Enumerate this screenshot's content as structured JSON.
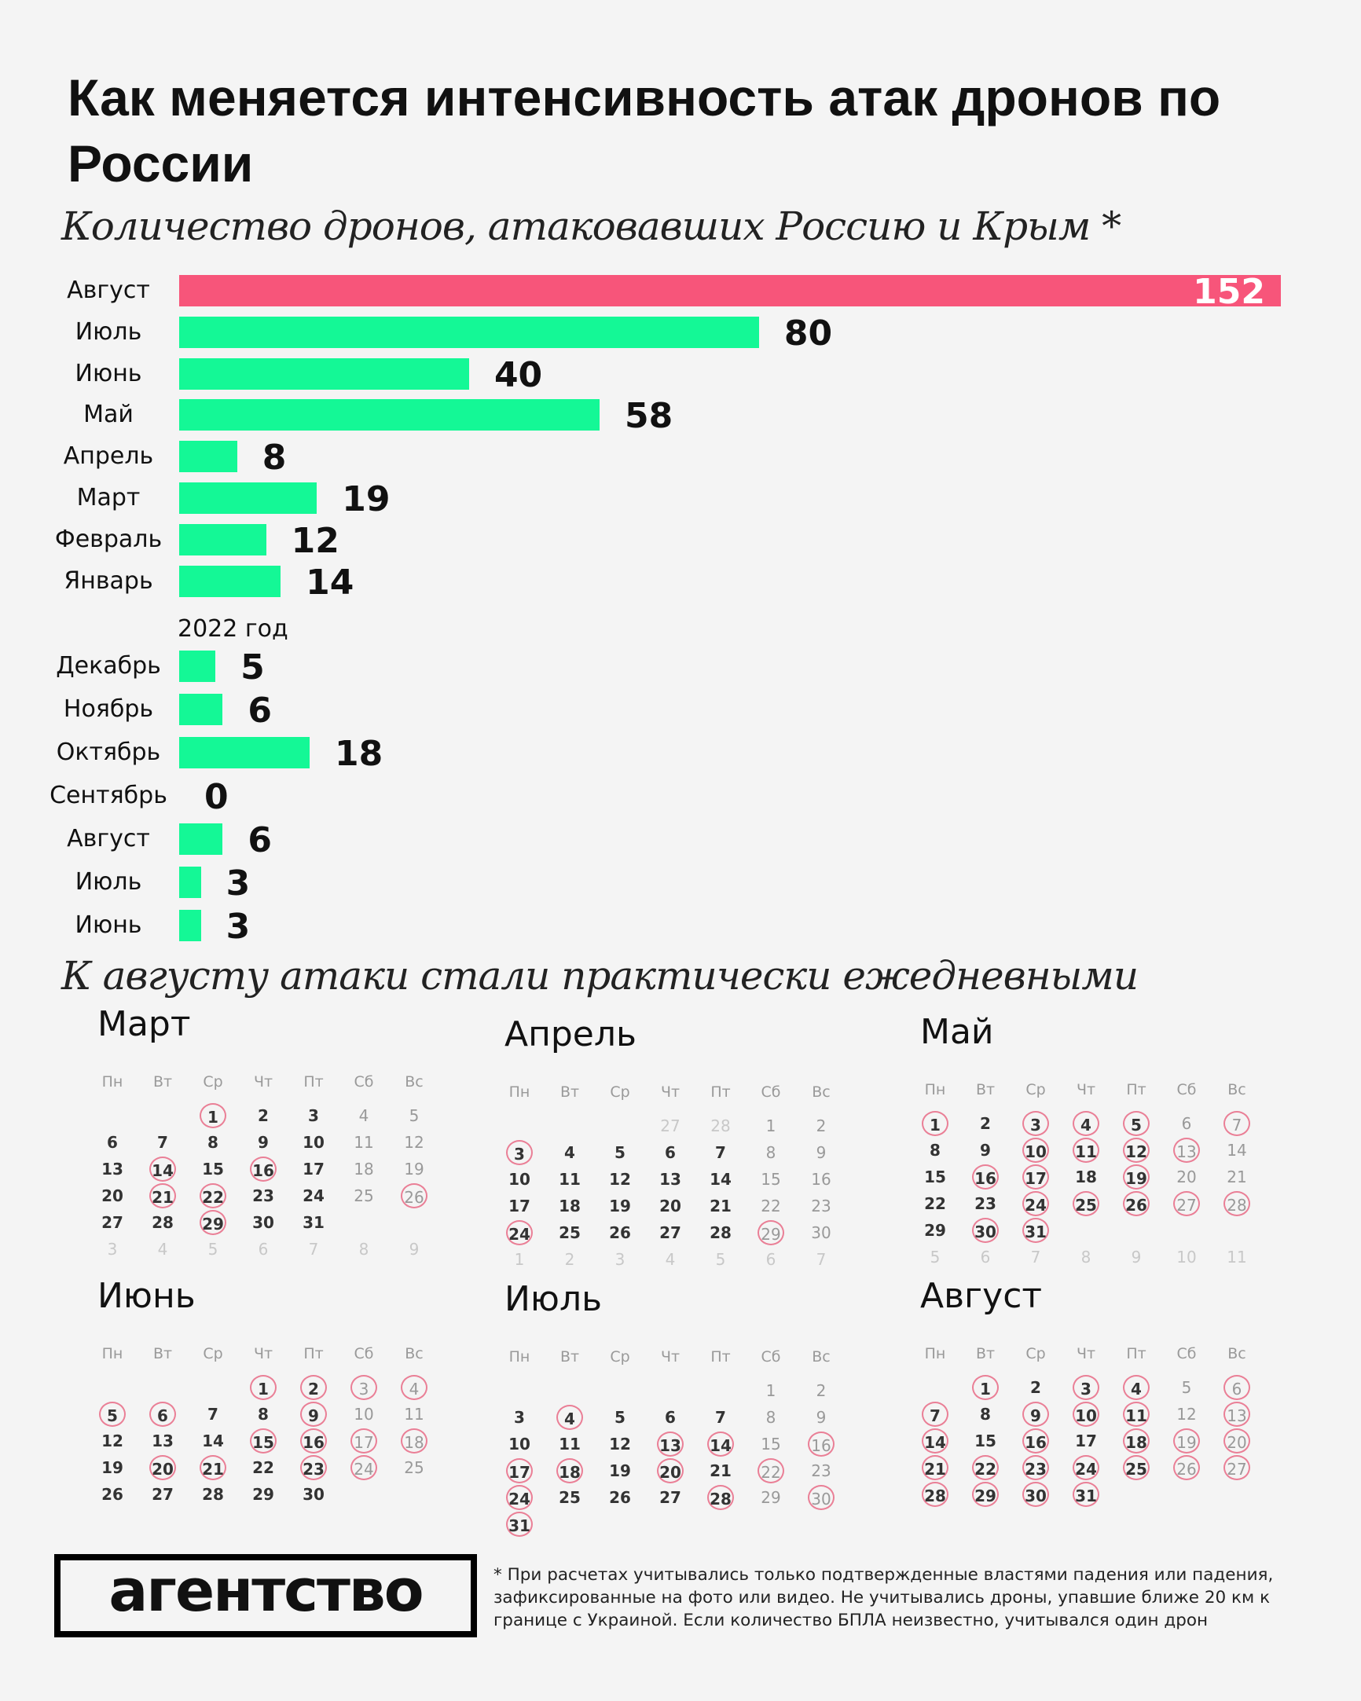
{
  "title": "Как меняется интенсивность атак дронов по России",
  "subtitle": "Количество дронов, атаковавших Россию и Крым *",
  "colors": {
    "highlight": "#f7557a",
    "bar": "#14f896",
    "circle": "#ea7f96",
    "background": "#f4f4f4"
  },
  "chart_data": {
    "type": "bar",
    "orientation": "horizontal",
    "title": "Количество дронов, атаковавших Россию и Крым *",
    "groups": [
      {
        "label": "",
        "categories": [
          "Август",
          "Июль",
          "Июнь",
          "Май",
          "Апрель",
          "Март",
          "Февраль",
          "Январь"
        ],
        "values": [
          152,
          80,
          40,
          58,
          8,
          19,
          12,
          14
        ]
      },
      {
        "label": "2022 год",
        "categories": [
          "Декабрь",
          "Ноябрь",
          "Октябрь",
          "Сентябрь",
          "Август",
          "Июль",
          "Июнь"
        ],
        "values": [
          5,
          6,
          18,
          0,
          6,
          3,
          3
        ]
      }
    ],
    "highlighted": "Август",
    "xlim": [
      0,
      152
    ]
  },
  "calendar_section": {
    "subtitle": "К августу атаки стали практически ежедневными",
    "weekdays": [
      "Пн",
      "Вт",
      "Ср",
      "Чт",
      "Пт",
      "Сб",
      "Вс"
    ],
    "months": [
      {
        "name": "Март",
        "start_weekday": 2,
        "days": 31,
        "leading": [],
        "trailing": [
          3,
          4,
          5,
          6,
          7,
          8,
          9
        ],
        "attack_days": [
          1,
          14,
          16,
          21,
          22,
          26,
          29
        ]
      },
      {
        "name": "Апрель",
        "start_weekday": 5,
        "days": 30,
        "leading": [
          27,
          28
        ],
        "trailing": [
          1,
          2,
          3,
          4,
          5,
          6,
          7
        ],
        "attack_days": [
          3,
          24,
          29
        ]
      },
      {
        "name": "Май",
        "start_weekday": 0,
        "days": 31,
        "leading": [],
        "trailing": [
          5,
          6,
          7,
          8,
          9,
          10,
          11
        ],
        "attack_days": [
          1,
          3,
          4,
          5,
          7,
          10,
          11,
          12,
          13,
          16,
          17,
          19,
          24,
          25,
          26,
          27,
          28,
          30,
          31
        ]
      },
      {
        "name": "Июнь",
        "start_weekday": 3,
        "days": 30,
        "leading": [],
        "trailing": [],
        "attack_days": [
          1,
          2,
          3,
          4,
          5,
          6,
          9,
          15,
          16,
          17,
          18,
          20,
          21,
          23,
          24
        ]
      },
      {
        "name": "Июль",
        "start_weekday": 5,
        "days": 31,
        "leading": [],
        "trailing": [],
        "attack_days": [
          4,
          13,
          14,
          16,
          17,
          18,
          20,
          22,
          24,
          28,
          30,
          31
        ]
      },
      {
        "name": "Август",
        "start_weekday": 1,
        "days": 31,
        "leading": [],
        "trailing": [],
        "attack_days": [
          1,
          3,
          4,
          6,
          7,
          9,
          10,
          11,
          13,
          14,
          16,
          18,
          19,
          20,
          21,
          22,
          23,
          24,
          25,
          26,
          27,
          28,
          29,
          30,
          31
        ]
      }
    ]
  },
  "logo": "агентство",
  "footnote": "* При расчетах учитывались только подтвержденные властями падения или падения, зафиксированные на фото или видео. Не учитывались дроны, упавшие ближе 20 км к границе с Украиной. Если количество БПЛА неизвестно, учитывался один дрон"
}
